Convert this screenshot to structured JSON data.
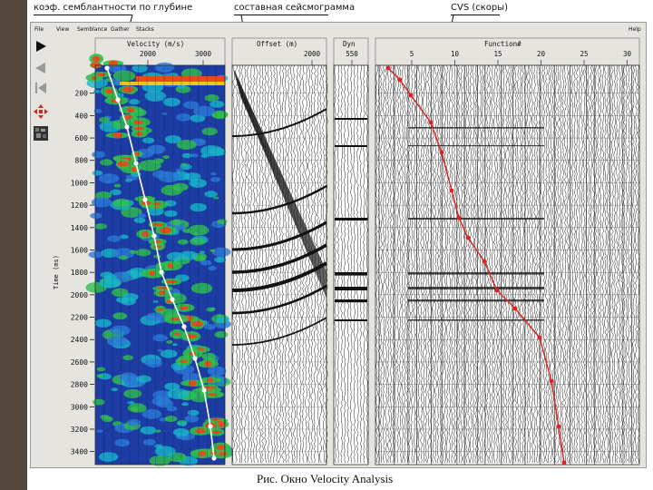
{
  "annotations": {
    "left": "коэф. семблантности по глубине",
    "middle": "составная сейсмограмма",
    "right": "CVS (скоры)"
  },
  "menu": {
    "items": [
      "File",
      "View",
      "Semblance",
      "Gather",
      "Stacks"
    ],
    "help": "Help"
  },
  "toolbar": {
    "icons": [
      "play-icon",
      "back-icon",
      "skip-back-icon",
      "move-icon",
      "grid-icon"
    ]
  },
  "panels": {
    "velocity": {
      "title": "Velocity (m/s)",
      "ticks": [
        "2000",
        "3000"
      ]
    },
    "offset": {
      "title": "Offset (m)",
      "ticks": [
        "2000"
      ]
    },
    "dyn": {
      "title": "Dyn",
      "ticks": [
        "550"
      ]
    },
    "function": {
      "title": "Function#",
      "ticks": [
        "5",
        "10",
        "15",
        "20",
        "25",
        "30"
      ]
    }
  },
  "time_axis": {
    "label": "Time (ms)",
    "ticks": [
      "200",
      "400",
      "600",
      "800",
      "1000",
      "1200",
      "1400",
      "1600",
      "1800",
      "2000",
      "2200",
      "2400",
      "2600",
      "2800",
      "3000",
      "3200",
      "3400"
    ]
  },
  "colors": {
    "window_bg": "#e6e4df",
    "semblance_bg": "#1d3da5",
    "pick": "#e02020",
    "side_bar": "#54463a"
  },
  "caption": "Рис.   Окно Velocity Analysis"
}
